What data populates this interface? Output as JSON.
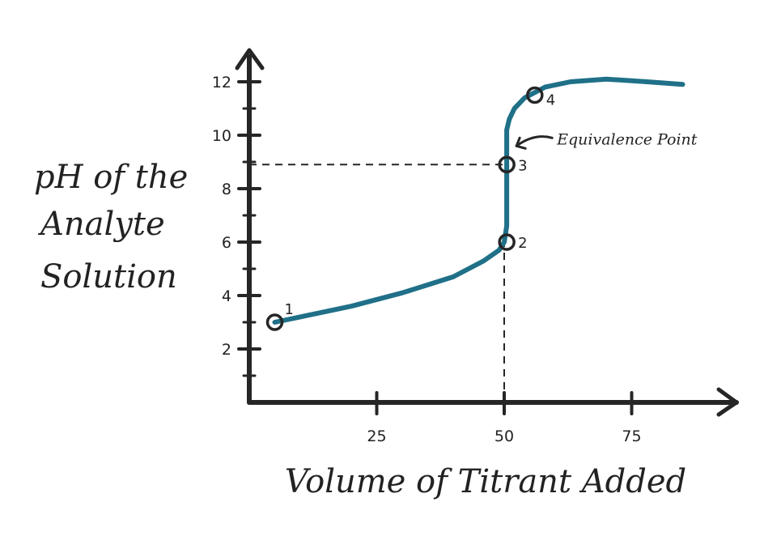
{
  "chart_data": {
    "type": "line",
    "title": "",
    "xlabel": "Volume of Titrant Added",
    "ylabel_lines": [
      "pH of the",
      "Analyte",
      "Solution"
    ],
    "xlim": [
      0,
      95
    ],
    "ylim": [
      0,
      13.5
    ],
    "x_ticks": [
      25,
      50,
      75
    ],
    "y_ticks": [
      2,
      4,
      6,
      8,
      10,
      12
    ],
    "grid": false,
    "series": [
      {
        "color": "#1f7088",
        "x": [
          5,
          10,
          20,
          30,
          40,
          46,
          49,
          50,
          50.5,
          50.5,
          50.5,
          51,
          52,
          54,
          58,
          63,
          70,
          78,
          85
        ],
        "y": [
          3.0,
          3.2,
          3.6,
          4.1,
          4.7,
          5.3,
          5.7,
          6.0,
          6.6,
          8.9,
          10.2,
          10.6,
          11.0,
          11.4,
          11.8,
          12.0,
          12.1,
          12.0,
          11.9
        ]
      }
    ],
    "points": [
      {
        "label": "1",
        "x": 5,
        "y": 3.0
      },
      {
        "label": "2",
        "x": 50.5,
        "y": 6.0
      },
      {
        "label": "3",
        "x": 50.5,
        "y": 8.9
      },
      {
        "label": "4",
        "x": 56,
        "y": 11.5
      }
    ],
    "reference_lines": [
      {
        "orientation": "horizontal",
        "y": 8.9,
        "x_from": 0,
        "x_to": 50.5
      },
      {
        "orientation": "vertical",
        "x": 50,
        "y_from": 0,
        "y_to": 6.0
      }
    ],
    "annotations": [
      {
        "text": "Equivalence Point",
        "target_point": "3"
      }
    ]
  }
}
